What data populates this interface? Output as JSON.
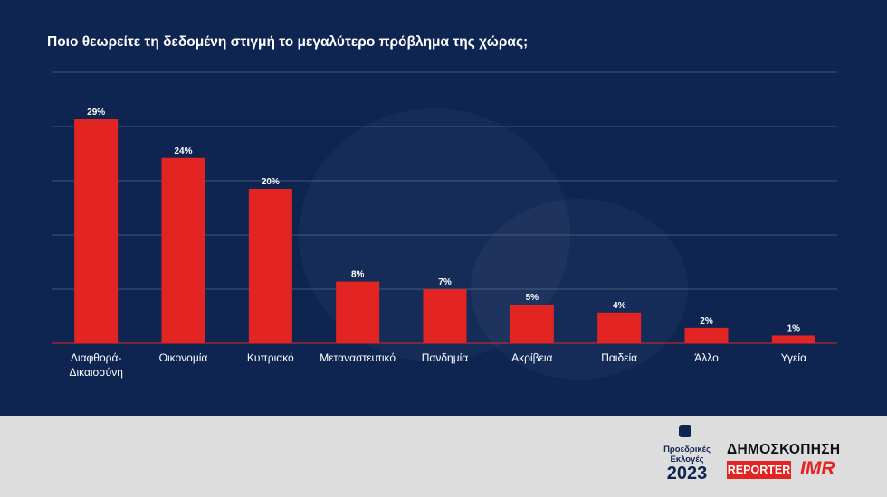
{
  "title": "Ποιο θεωρείτε τη δεδομένη στιγμή το μεγαλύτερο πρόβλημα της χώρας;",
  "colors": {
    "background": "#0e2552",
    "bar": "#e22422",
    "text": "#ffffff",
    "grid": "#8a98b8",
    "footer": "#dddddd"
  },
  "chart_data": {
    "type": "bar",
    "title": "Ποιο θεωρείτε τη δεδομένη στιγμή το μεγαλύτερο πρόβλημα της χώρας;",
    "categories": [
      [
        "Διαφθορά-",
        "Δικαιοσύνη"
      ],
      [
        "Οικονομία"
      ],
      [
        "Κυπριακό"
      ],
      [
        "Μεταναστευτικό"
      ],
      [
        "Πανδημία"
      ],
      [
        "Ακρίβεια"
      ],
      [
        "Παιδεία"
      ],
      [
        "Άλλο"
      ],
      [
        "Υγεία"
      ]
    ],
    "values": [
      29,
      24,
      20,
      8,
      7,
      5,
      4,
      2,
      1
    ],
    "data_labels": [
      "29%",
      "24%",
      "20%",
      "8%",
      "7%",
      "5%",
      "4%",
      "2%",
      "1%"
    ],
    "xlabel": "",
    "ylabel": "",
    "ylim": [
      0,
      30
    ],
    "grid": true
  },
  "footer": {
    "logo_line1": "Προεδρικές",
    "logo_line2": "Εκλογές",
    "logo_year": "2023",
    "survey_title": "ΔΗΜΟΣΚΟΠΗΣΗ",
    "reporter": "REPORTER",
    "imr": "IMR"
  }
}
